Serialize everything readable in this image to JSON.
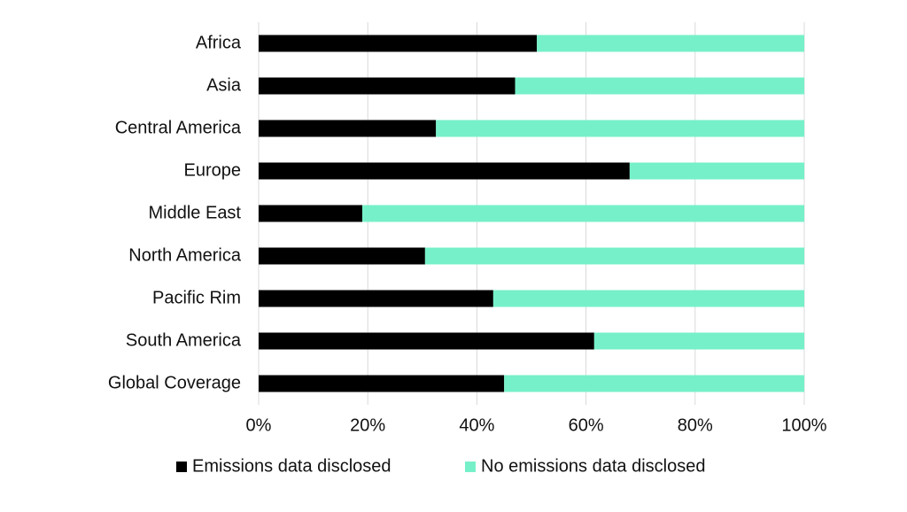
{
  "chart_data": {
    "type": "stacked_barh",
    "categories": [
      "Africa",
      "Asia",
      "Central America",
      "Europe",
      "Middle East",
      "North America",
      "Pacific Rim",
      "South America",
      "Global Coverage"
    ],
    "series": [
      {
        "name": "Emissions data disclosed",
        "color": "#000000",
        "values": [
          51,
          47,
          32.5,
          68,
          19,
          30.5,
          43,
          61.5,
          45
        ]
      },
      {
        "name": "No emissions data disclosed",
        "color": "#76f0c8",
        "values": [
          49,
          53,
          67.5,
          32,
          81,
          69.5,
          57,
          38.5,
          55
        ]
      }
    ],
    "xlim": [
      0,
      100
    ],
    "xticks": [
      {
        "value": 0,
        "label": "0%"
      },
      {
        "value": 20,
        "label": "20%"
      },
      {
        "value": 40,
        "label": "40%"
      },
      {
        "value": 60,
        "label": "60%"
      },
      {
        "value": 80,
        "label": "80%"
      },
      {
        "value": 100,
        "label": "100%"
      }
    ],
    "grid": true,
    "legend": "bottom"
  }
}
